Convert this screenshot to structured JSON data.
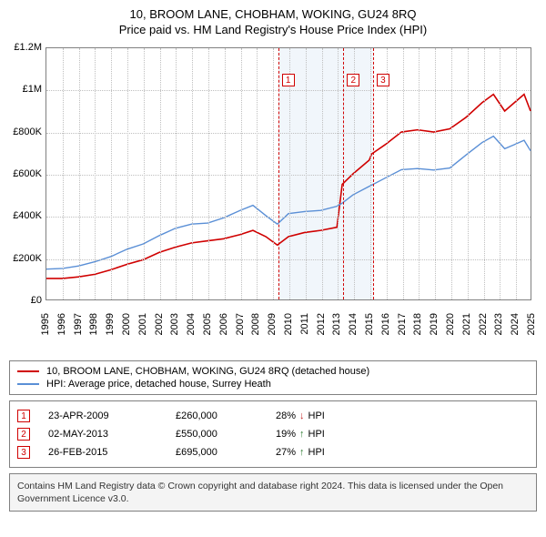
{
  "title_line1": "10, BROOM LANE, CHOBHAM, WOKING, GU24 8RQ",
  "title_line2": "Price paid vs. HM Land Registry's House Price Index (HPI)",
  "chart": {
    "type": "line",
    "x_axis": {
      "min": 1995,
      "max": 2025,
      "tick_step": 1,
      "label_rotation_deg": -90,
      "label_fontsize": 11
    },
    "y_axis": {
      "min": 0,
      "max": 1200000,
      "tick_step": 200000,
      "format": "£{M}M|£{K}K|£0",
      "label_fontsize": 11
    },
    "y_tick_labels": [
      "£0",
      "£200K",
      "£400K",
      "£600K",
      "£800K",
      "£1M",
      "£1.2M"
    ],
    "grid_color": "#bfbfbf",
    "border_color": "#808080",
    "background_color": "#ffffff",
    "shaded_band": {
      "x_start": 2009.31,
      "x_end": 2015.16,
      "color": "#f1f6fb"
    },
    "series": [
      {
        "id": "property",
        "label": "10, BROOM LANE, CHOBHAM, WOKING, GU24 8RQ (detached house)",
        "color": "#d00000",
        "line_width": 1.6,
        "data": [
          [
            1995.0,
            100000
          ],
          [
            1996.0,
            100000
          ],
          [
            1997.0,
            108000
          ],
          [
            1998.0,
            120000
          ],
          [
            1999.0,
            142000
          ],
          [
            2000.0,
            168000
          ],
          [
            2001.0,
            190000
          ],
          [
            2002.0,
            225000
          ],
          [
            2003.0,
            250000
          ],
          [
            2004.0,
            270000
          ],
          [
            2005.0,
            280000
          ],
          [
            2006.0,
            290000
          ],
          [
            2007.0,
            310000
          ],
          [
            2007.8,
            330000
          ],
          [
            2008.6,
            300000
          ],
          [
            2009.31,
            260000
          ],
          [
            2010.0,
            300000
          ],
          [
            2011.0,
            320000
          ],
          [
            2012.0,
            330000
          ],
          [
            2013.0,
            345000
          ],
          [
            2013.33,
            550000
          ],
          [
            2014.0,
            600000
          ],
          [
            2015.0,
            665000
          ],
          [
            2015.16,
            695000
          ],
          [
            2016.0,
            740000
          ],
          [
            2017.0,
            800000
          ],
          [
            2018.0,
            810000
          ],
          [
            2019.0,
            800000
          ],
          [
            2020.0,
            815000
          ],
          [
            2021.0,
            870000
          ],
          [
            2022.0,
            940000
          ],
          [
            2022.7,
            980000
          ],
          [
            2023.4,
            900000
          ],
          [
            2024.0,
            940000
          ],
          [
            2024.6,
            980000
          ],
          [
            2025.0,
            900000
          ]
        ]
      },
      {
        "id": "hpi",
        "label": "HPI: Average price, detached house, Surrey Heath",
        "color": "#5a8fd6",
        "line_width": 1.4,
        "data": [
          [
            1995.0,
            145000
          ],
          [
            1996.0,
            148000
          ],
          [
            1997.0,
            160000
          ],
          [
            1998.0,
            180000
          ],
          [
            1999.0,
            205000
          ],
          [
            2000.0,
            240000
          ],
          [
            2001.0,
            265000
          ],
          [
            2002.0,
            305000
          ],
          [
            2003.0,
            340000
          ],
          [
            2004.0,
            360000
          ],
          [
            2005.0,
            365000
          ],
          [
            2006.0,
            390000
          ],
          [
            2007.0,
            425000
          ],
          [
            2007.8,
            450000
          ],
          [
            2008.6,
            400000
          ],
          [
            2009.31,
            360000
          ],
          [
            2010.0,
            410000
          ],
          [
            2011.0,
            420000
          ],
          [
            2012.0,
            425000
          ],
          [
            2013.0,
            445000
          ],
          [
            2013.33,
            460000
          ],
          [
            2014.0,
            500000
          ],
          [
            2015.0,
            540000
          ],
          [
            2015.16,
            546000
          ],
          [
            2016.0,
            580000
          ],
          [
            2017.0,
            620000
          ],
          [
            2018.0,
            625000
          ],
          [
            2019.0,
            618000
          ],
          [
            2020.0,
            628000
          ],
          [
            2021.0,
            690000
          ],
          [
            2022.0,
            750000
          ],
          [
            2022.7,
            780000
          ],
          [
            2023.4,
            720000
          ],
          [
            2024.0,
            740000
          ],
          [
            2024.6,
            760000
          ],
          [
            2025.0,
            710000
          ]
        ]
      }
    ],
    "markers": [
      {
        "n": "1",
        "x": 2009.31,
        "box_y": 1080000
      },
      {
        "n": "2",
        "x": 2013.33,
        "box_y": 1080000
      },
      {
        "n": "3",
        "x": 2015.16,
        "box_y": 1080000
      }
    ],
    "marker_line_color": "#d00000"
  },
  "legend": {
    "items": [
      {
        "color": "#d00000",
        "text": "10, BROOM LANE, CHOBHAM, WOKING, GU24 8RQ (detached house)"
      },
      {
        "color": "#5a8fd6",
        "text": "HPI: Average price, detached house, Surrey Heath"
      }
    ]
  },
  "sales": [
    {
      "n": "1",
      "date": "23-APR-2009",
      "price": "£260,000",
      "delta_pct": "28%",
      "direction": "down",
      "vs": "HPI"
    },
    {
      "n": "2",
      "date": "02-MAY-2013",
      "price": "£550,000",
      "delta_pct": "19%",
      "direction": "up",
      "vs": "HPI"
    },
    {
      "n": "3",
      "date": "26-FEB-2015",
      "price": "£695,000",
      "delta_pct": "27%",
      "direction": "up",
      "vs": "HPI"
    }
  ],
  "direction_glyph": {
    "up": "↑",
    "down": "↓"
  },
  "direction_color": {
    "up": "#2e7d32",
    "down": "#c62828"
  },
  "attribution": "Contains HM Land Registry data © Crown copyright and database right 2024. This data is licensed under the Open Government Licence v3.0."
}
